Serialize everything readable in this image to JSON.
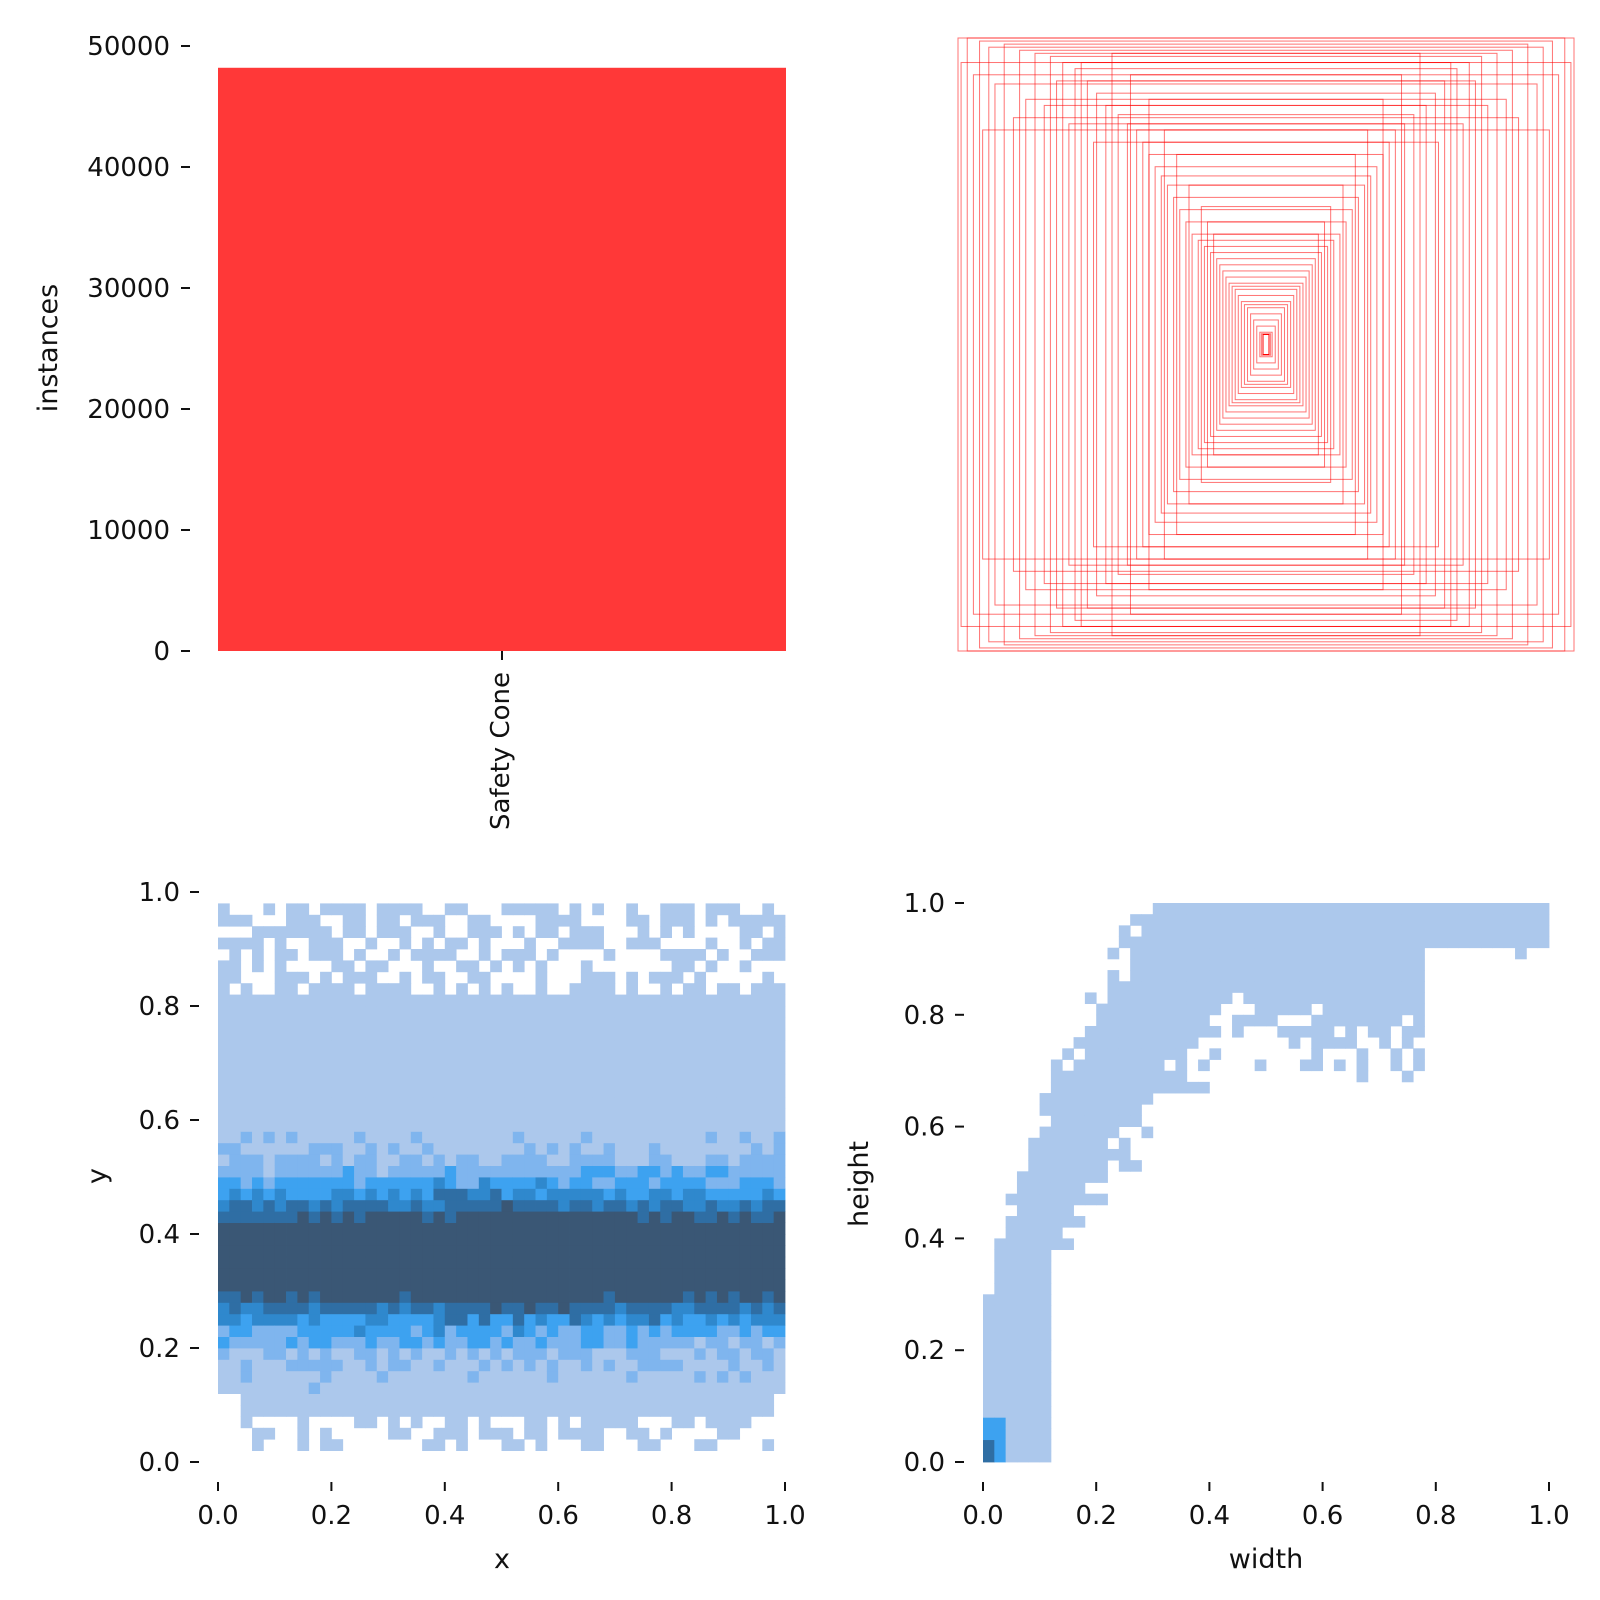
{
  "chart_data": [
    {
      "type": "bar",
      "categories": [
        "Safety Cone"
      ],
      "values": [
        48200
      ],
      "xlabel": "",
      "ylabel": "instances",
      "ylim": [
        0,
        50000
      ],
      "yticks": [
        "0",
        "10000",
        "20000",
        "30000",
        "40000",
        "50000"
      ],
      "color": "#ff3838"
    },
    {
      "type": "rectangles",
      "description_of_content": "overlaid label boxes centered at (0.5,0.5)",
      "boxes": [
        [
          1.0,
          1.0
        ],
        [
          0.97,
          1.0
        ],
        [
          0.93,
          0.99
        ],
        [
          0.9,
          0.97
        ],
        [
          0.85,
          0.98
        ],
        [
          0.8,
          0.96
        ],
        [
          0.75,
          0.95
        ],
        [
          0.7,
          0.94
        ],
        [
          0.66,
          0.92
        ],
        [
          0.62,
          0.9
        ],
        [
          0.58,
          0.86
        ],
        [
          0.55,
          0.82
        ],
        [
          0.52,
          0.78
        ],
        [
          0.48,
          0.75
        ],
        [
          0.45,
          0.72
        ],
        [
          0.42,
          0.7
        ],
        [
          0.4,
          0.66
        ],
        [
          0.38,
          0.62
        ],
        [
          0.36,
          0.58
        ],
        [
          0.34,
          0.55
        ],
        [
          0.32,
          0.52
        ],
        [
          0.3,
          0.48
        ],
        [
          0.28,
          0.44
        ],
        [
          0.26,
          0.4
        ],
        [
          0.24,
          0.36
        ],
        [
          0.22,
          0.34
        ],
        [
          0.2,
          0.32
        ],
        [
          0.18,
          0.3
        ],
        [
          0.16,
          0.28
        ],
        [
          0.15,
          0.26
        ],
        [
          0.14,
          0.24
        ],
        [
          0.13,
          0.22
        ],
        [
          0.12,
          0.2
        ],
        [
          0.11,
          0.19
        ],
        [
          0.1,
          0.18
        ],
        [
          0.09,
          0.16
        ],
        [
          0.08,
          0.14
        ],
        [
          0.07,
          0.13
        ],
        [
          0.06,
          0.12
        ],
        [
          0.05,
          0.1
        ],
        [
          0.04,
          0.08
        ],
        [
          0.03,
          0.06
        ],
        [
          0.02,
          0.04
        ],
        [
          0.015,
          0.035
        ],
        [
          0.99,
          0.92
        ],
        [
          0.95,
          0.88
        ],
        [
          0.88,
          0.85
        ],
        [
          0.78,
          0.8
        ],
        [
          0.68,
          0.86
        ],
        [
          0.6,
          0.92
        ],
        [
          0.5,
          0.95
        ],
        [
          0.44,
          0.88
        ],
        [
          0.38,
          0.8
        ],
        [
          0.33,
          0.7
        ],
        [
          0.29,
          0.62
        ],
        [
          0.25,
          0.52
        ],
        [
          0.21,
          0.45
        ],
        [
          0.19,
          0.4
        ],
        [
          0.17,
          0.36
        ],
        [
          0.92,
          0.7
        ],
        [
          0.82,
          0.74
        ],
        [
          0.72,
          0.78
        ],
        [
          0.64,
          0.72
        ],
        [
          0.56,
          0.66
        ]
      ],
      "color": "#ff0000"
    },
    {
      "type": "heatmap",
      "xlabel": "x",
      "ylabel": "y",
      "xlim": [
        0,
        1
      ],
      "ylim": [
        0,
        1
      ],
      "xticks": [
        "0.0",
        "0.2",
        "0.4",
        "0.6",
        "0.8",
        "1.0"
      ],
      "yticks": [
        "0.0",
        "0.2",
        "0.4",
        "0.6",
        "0.8",
        "1.0"
      ],
      "bins": 50,
      "colors": [
        "#acc8ec",
        "#7fb5ee",
        "#3da2f0",
        "#2f88cd",
        "#2f6ea4",
        "#3a5775"
      ],
      "mode_y": 0.36,
      "y_range": [
        0.02,
        0.98
      ]
    },
    {
      "type": "heatmap",
      "xlabel": "width",
      "ylabel": "height",
      "xlim": [
        0,
        1
      ],
      "ylim": [
        0,
        1
      ],
      "xticks": [
        "0.0",
        "0.2",
        "0.4",
        "0.6",
        "0.8",
        "1.0"
      ],
      "yticks": [
        "0.0",
        "0.2",
        "0.4",
        "0.6",
        "0.8",
        "1.0"
      ],
      "bins": 50,
      "colors": [
        "#acc8ec",
        "#3da2f0",
        "#2f6ea4"
      ],
      "dense_corner": [
        0.0,
        0.0
      ]
    }
  ]
}
